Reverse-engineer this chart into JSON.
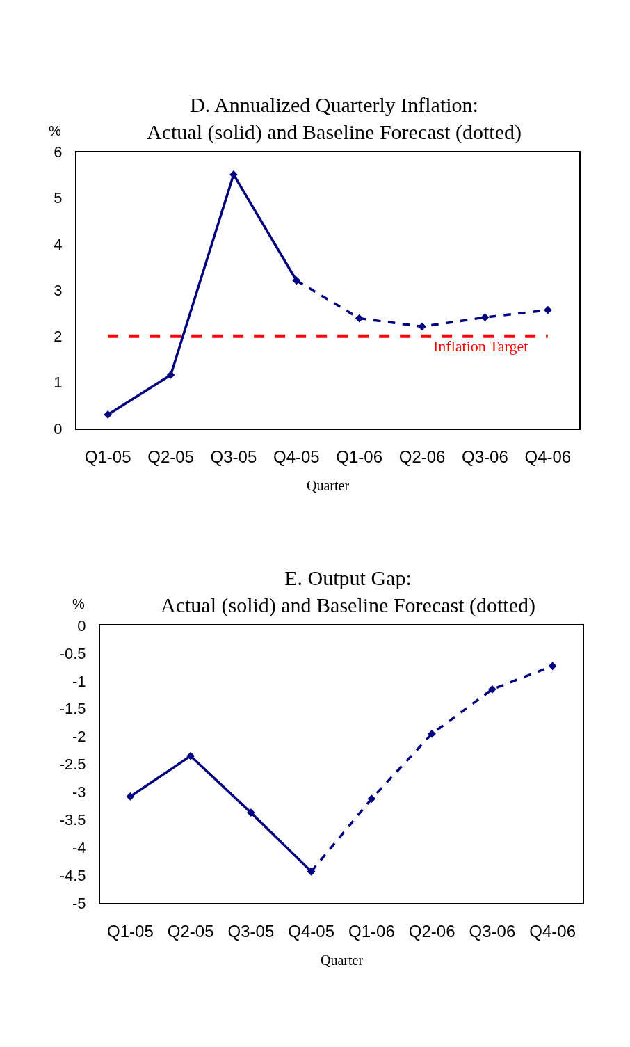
{
  "chart_data": [
    {
      "type": "line",
      "title": "D. Annualized Quarterly Inflation:\nActual (solid) and Baseline Forecast (dotted)",
      "xlabel": "Quarter",
      "ylabel": "%",
      "categories": [
        "Q1-05",
        "Q2-05",
        "Q3-05",
        "Q4-05",
        "Q1-06",
        "Q2-06",
        "Q3-06",
        "Q4-06"
      ],
      "series": [
        {
          "color": "#000080",
          "line_style": "solid",
          "values": [
            0.3,
            1.16,
            5.51,
            3.21,
            null,
            null,
            null,
            null
          ]
        },
        {
          "color": "#000080",
          "line_style": "dashed",
          "values": [
            null,
            null,
            null,
            3.21,
            2.39,
            2.21,
            2.41,
            2.57
          ]
        }
      ],
      "ylim": [
        0,
        6
      ],
      "yticks": [
        0,
        1,
        2,
        3,
        4,
        5,
        6
      ],
      "marker": "diamond",
      "ref_lines": [
        {
          "axis": "y",
          "value": 2,
          "label": "Inflation Target",
          "color": "#ff0000",
          "line_style": "dashed"
        }
      ]
    },
    {
      "type": "line",
      "title": "E. Output Gap:\nActual (solid) and Baseline Forecast (dotted)",
      "xlabel": "Quarter",
      "ylabel": "%",
      "categories": [
        "Q1-05",
        "Q2-05",
        "Q3-05",
        "Q4-05",
        "Q1-06",
        "Q2-06",
        "Q3-06",
        "Q4-06"
      ],
      "series": [
        {
          "color": "#000080",
          "line_style": "solid",
          "values": [
            -3.08,
            -2.35,
            -3.37,
            -4.43,
            null,
            null,
            null,
            null
          ]
        },
        {
          "color": "#000080",
          "line_style": "dashed",
          "values": [
            null,
            null,
            null,
            -4.43,
            -3.12,
            -1.95,
            -1.15,
            -0.73
          ]
        }
      ],
      "ylim": [
        -5,
        0
      ],
      "yticks": [
        0,
        -0.5,
        -1,
        -1.5,
        -2,
        -2.5,
        -3,
        -3.5,
        -4,
        -4.5,
        -5
      ],
      "marker": "diamond"
    }
  ]
}
